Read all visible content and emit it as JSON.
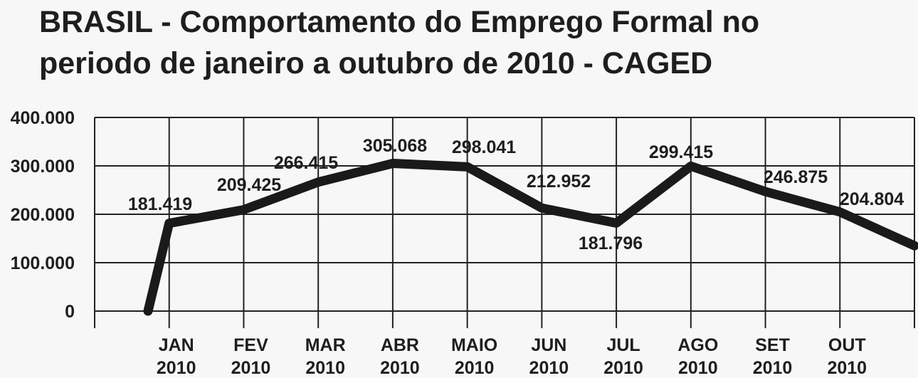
{
  "chart_data": {
    "type": "line",
    "title_lines": [
      "BRASIL - Comportamento do Emprego Formal no",
      "periodo de janeiro a outubro de 2010 - CAGED"
    ],
    "categories": [
      [
        "JAN",
        "2010"
      ],
      [
        "FEV",
        "2010"
      ],
      [
        "MAR",
        "2010"
      ],
      [
        "ABR",
        "2010"
      ],
      [
        "MAIO",
        "2010"
      ],
      [
        "JUN",
        "2010"
      ],
      [
        "JUL",
        "2010"
      ],
      [
        "AGO",
        "2010"
      ],
      [
        "SET",
        "2010"
      ],
      [
        "OUT",
        "2010"
      ]
    ],
    "values": [
      181419,
      209425,
      266415,
      305068,
      298041,
      212952,
      181796,
      299415,
      246875,
      204804
    ],
    "data_labels": [
      "181.419",
      "209.425",
      "266.415",
      "305.068",
      "298.041",
      "212.952",
      "181.796",
      "299.415",
      "246.875",
      "204.804"
    ],
    "line_start_value": 0,
    "line_end_value": 135000,
    "yticks": [
      0,
      100000,
      200000,
      300000,
      400000
    ],
    "ytick_labels": [
      "0",
      "100.000",
      "200.000",
      "300.000",
      "400.000"
    ],
    "ylim": [
      0,
      400000
    ],
    "grid": true,
    "line_color": "#1a1a1a"
  }
}
